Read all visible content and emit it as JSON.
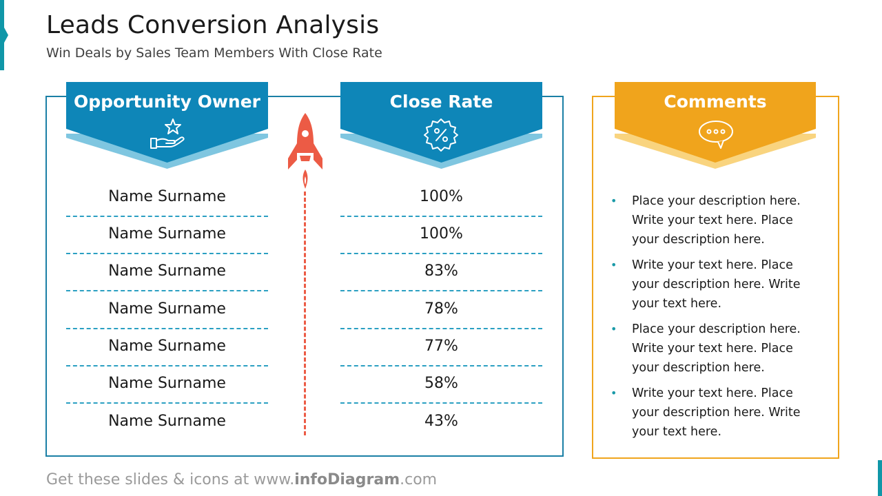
{
  "header": {
    "title": "Leads Conversion Analysis",
    "subtitle": "Win Deals by Sales Team Members With Close Rate"
  },
  "owner_column": {
    "heading": "Opportunity Owner",
    "icon": "hand-star-icon",
    "names": [
      "Name Surname",
      "Name Surname",
      "Name Surname",
      "Name Surname",
      "Name Surname",
      "Name Surname",
      "Name Surname"
    ]
  },
  "rate_column": {
    "heading": "Close Rate",
    "icon": "percent-badge-icon",
    "rates": [
      "100%",
      "100%",
      "83%",
      "78%",
      "77%",
      "58%",
      "43%"
    ]
  },
  "comments": {
    "heading": "Comments",
    "icon": "speech-bubble-icon",
    "items": [
      "Place your description here. Write your text here. Place your description here.",
      "Write your text here. Place your description here. Write your text here.",
      "Place your description here. Write your text here. Place your description here.",
      "Write your text here. Place your description here. Write your text here."
    ]
  },
  "footer": {
    "prefix": "Get these slides & icons at www.",
    "brand": "infoDiagram",
    "suffix": ".com"
  },
  "colors": {
    "blue": "#0e86b8",
    "light_blue": "#7fc6e0",
    "orange": "#f0a41c",
    "light_orange": "#f9d47f",
    "rocket": "#ec5b45",
    "teal_accent": "#1097a8"
  }
}
